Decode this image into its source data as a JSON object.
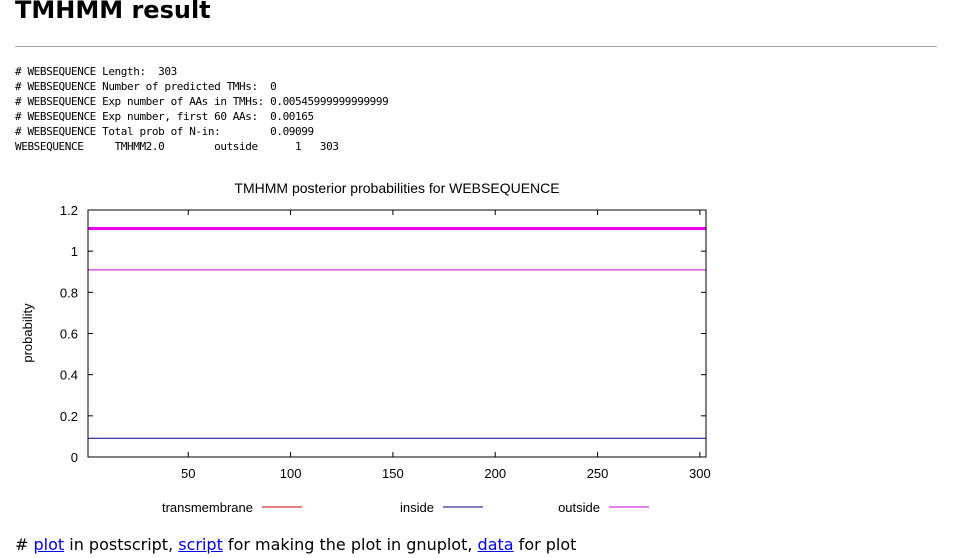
{
  "page": {
    "title": "TMHMM result"
  },
  "output_lines": [
    "# WEBSEQUENCE Length:  303",
    "# WEBSEQUENCE Number of predicted TMHs:  0",
    "# WEBSEQUENCE Exp number of AAs in TMHs: 0.00545999999999999",
    "# WEBSEQUENCE Exp number, first 60 AAs:  0.00165",
    "# WEBSEQUENCE Total prob of N-in:        0.09099",
    "WEBSEQUENCE\tTMHMM2.0\toutside\t     1   303"
  ],
  "chart_data": {
    "type": "line",
    "title": "TMHMM posterior probabilities for WEBSEQUENCE",
    "xlabel": "",
    "ylabel": "probability",
    "xlim": [
      1,
      303
    ],
    "ylim": [
      0,
      1.2
    ],
    "x_ticks": [
      "50",
      "100",
      "150",
      "200",
      "250",
      "300"
    ],
    "y_ticks": [
      "0",
      "0.2",
      "0.4",
      "0.6",
      "0.8",
      "1",
      "1.2"
    ],
    "series": [
      {
        "name": "transmembrane",
        "color": "#cc0000",
        "x": [
          1,
          303
        ],
        "y": [
          0,
          0
        ]
      },
      {
        "name": "inside",
        "color": "#000080",
        "x": [
          1,
          303
        ],
        "y": [
          0.09099,
          0.09099
        ]
      },
      {
        "name": "outside",
        "color": "#cc00cc",
        "x": [
          1,
          303
        ],
        "y": [
          0.90901,
          0.90901
        ]
      }
    ],
    "band": {
      "label": "outside",
      "color": "#ee00ee",
      "from": 1,
      "to": 303,
      "y": 1.11
    },
    "legend_position": "bottom"
  },
  "footer": {
    "prefix": "# ",
    "plot_link": "plot",
    "text1": " in postscript, ",
    "script_link": "script",
    "text2": " for making the plot in gnuplot, ",
    "data_link": "data",
    "text3": " for plot"
  }
}
